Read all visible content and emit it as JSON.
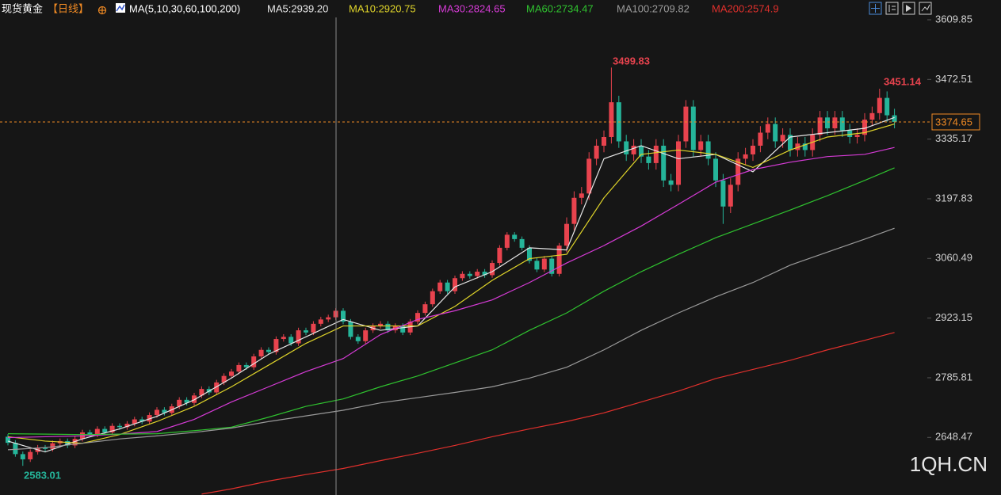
{
  "chart_data": {
    "type": "candlestick",
    "title": "现货黄金",
    "period": "【日线】",
    "ma_title": "MA(5,10,30,60,100,200)",
    "watermark": "1QH.CN",
    "up_color": "#e8434e",
    "down_color": "#25b59a",
    "ylim": [
      2515.9,
      3655.4
    ],
    "yticks": [
      2648.47,
      2785.81,
      2923.15,
      3060.49,
      3197.83,
      3335.17,
      3472.51,
      3609.85
    ],
    "grid": false,
    "open": [
      2650,
      2636,
      2610,
      2598,
      2615,
      2625,
      2622,
      2635,
      2640,
      2630,
      2645,
      2660,
      2655,
      2668,
      2660,
      2675,
      2672,
      2680,
      2690,
      2685,
      2700,
      2712,
      2705,
      2720,
      2735,
      2728,
      2745,
      2760,
      2752,
      2775,
      2790,
      2800,
      2815,
      2810,
      2835,
      2850,
      2845,
      2875,
      2880,
      2865,
      2895,
      2890,
      2910,
      2920,
      2925,
      2940,
      2915,
      2880,
      2870,
      2895,
      2905,
      2910,
      2895,
      2905,
      2890,
      2915,
      2935,
      2955,
      2985,
      3005,
      2985,
      3015,
      3025,
      3020,
      3030,
      3022,
      3050,
      3085,
      3115,
      3105,
      3085,
      3055,
      3035,
      3060,
      3025,
      3090,
      3140,
      3200,
      3210,
      3290,
      3320,
      3340,
      3420,
      3330,
      3300,
      3320,
      3295,
      3280,
      3320,
      3240,
      3230,
      3330,
      3410,
      3310,
      3330,
      3290,
      3240,
      3180,
      3230,
      3290,
      3300,
      3320,
      3350,
      3370,
      3330,
      3345,
      3310,
      3325,
      3310,
      3345,
      3385,
      3360,
      3385,
      3355,
      3340,
      3345,
      3380,
      3395,
      3430,
      3390
    ],
    "high": [
      2656,
      2642,
      2616,
      2621,
      2631,
      2631,
      2641,
      2646,
      2646,
      2651,
      2666,
      2666,
      2674,
      2674,
      2681,
      2681,
      2686,
      2696,
      2696,
      2706,
      2718,
      2718,
      2726,
      2741,
      2741,
      2751,
      2766,
      2766,
      2781,
      2796,
      2806,
      2821,
      2821,
      2841,
      2856,
      2856,
      2881,
      2886,
      2886,
      2901,
      2901,
      2916,
      2926,
      2931,
      2946,
      2946,
      2921,
      2886,
      2901,
      2911,
      2916,
      2916,
      2911,
      2911,
      2921,
      2941,
      2961,
      2991,
      3011,
      3011,
      3021,
      3031,
      3031,
      3036,
      3036,
      3056,
      3091,
      3121,
      3121,
      3111,
      3091,
      3061,
      3066,
      3066,
      3096,
      3155,
      3215,
      3225,
      3305,
      3335,
      3355,
      3499.83,
      3435,
      3345,
      3335,
      3335,
      3310,
      3335,
      3335,
      3255,
      3345,
      3425,
      3425,
      3345,
      3345,
      3305,
      3255,
      3245,
      3305,
      3315,
      3335,
      3365,
      3385,
      3385,
      3360,
      3360,
      3340,
      3340,
      3360,
      3400,
      3400,
      3400,
      3400,
      3370,
      3360,
      3395,
      3410,
      3451.14,
      3445,
      3405
    ],
    "low": [
      2630,
      2604,
      2583.01,
      2592,
      2609,
      2616,
      2616,
      2629,
      2624,
      2624,
      2639,
      2649,
      2649,
      2654,
      2654,
      2666,
      2666,
      2674,
      2679,
      2679,
      2694,
      2699,
      2699,
      2714,
      2722,
      2722,
      2739,
      2746,
      2746,
      2769,
      2784,
      2794,
      2804,
      2804,
      2829,
      2839,
      2839,
      2869,
      2859,
      2859,
      2884,
      2884,
      2904,
      2914,
      2919,
      2909,
      2874,
      2864,
      2864,
      2889,
      2899,
      2889,
      2889,
      2884,
      2884,
      2909,
      2929,
      2949,
      2979,
      2979,
      2979,
      3009,
      3014,
      3014,
      3016,
      3016,
      3044,
      3079,
      3099,
      3079,
      3049,
      3029,
      3029,
      3019,
      3019,
      3075,
      3125,
      3185,
      3195,
      3275,
      3305,
      3325,
      3315,
      3285,
      3285,
      3280,
      3265,
      3265,
      3225,
      3215,
      3215,
      3315,
      3295,
      3295,
      3275,
      3225,
      3140,
      3165,
      3215,
      3275,
      3285,
      3305,
      3335,
      3315,
      3315,
      3295,
      3295,
      3295,
      3295,
      3330,
      3345,
      3345,
      3340,
      3325,
      3325,
      3330,
      3365,
      3380,
      3375,
      3360
    ],
    "close": [
      2636,
      2610,
      2598,
      2615,
      2625,
      2622,
      2635,
      2640,
      2630,
      2645,
      2660,
      2655,
      2668,
      2660,
      2675,
      2672,
      2680,
      2690,
      2685,
      2700,
      2712,
      2705,
      2720,
      2735,
      2728,
      2745,
      2760,
      2752,
      2775,
      2790,
      2800,
      2815,
      2810,
      2835,
      2850,
      2845,
      2875,
      2880,
      2865,
      2895,
      2890,
      2910,
      2920,
      2925,
      2940,
      2915,
      2880,
      2870,
      2895,
      2905,
      2910,
      2895,
      2905,
      2890,
      2915,
      2935,
      2955,
      2985,
      3005,
      2985,
      3015,
      3025,
      3020,
      3030,
      3022,
      3050,
      3085,
      3115,
      3105,
      3085,
      3055,
      3035,
      3060,
      3025,
      3090,
      3140,
      3200,
      3210,
      3290,
      3320,
      3340,
      3420,
      3330,
      3300,
      3320,
      3295,
      3280,
      3320,
      3240,
      3230,
      3330,
      3410,
      3310,
      3330,
      3290,
      3240,
      3180,
      3230,
      3290,
      3300,
      3320,
      3350,
      3370,
      3330,
      3345,
      3310,
      3325,
      3310,
      3345,
      3385,
      3360,
      3385,
      3355,
      3340,
      3345,
      3380,
      3395,
      3430,
      3390,
      3374.65
    ],
    "series": [
      {
        "label": "MA5:2939.20",
        "color": "#e8e8e8",
        "x": [
          0,
          5,
          10,
          15,
          20,
          25,
          30,
          35,
          40,
          45,
          50,
          55,
          60,
          65,
          70,
          75,
          80,
          85,
          90,
          95,
          100,
          105,
          110,
          115,
          119
        ],
        "values": [
          2640,
          2615,
          2645,
          2668,
          2697,
          2735,
          2785,
          2840,
          2880,
          2920,
          2895,
          2905,
          2995,
          3030,
          3085,
          3080,
          3290,
          3320,
          3290,
          3300,
          3260,
          3340,
          3350,
          3360,
          3385
        ]
      },
      {
        "label": "MA10:2920.75",
        "color": "#e0d52a",
        "x": [
          0,
          5,
          10,
          15,
          20,
          25,
          30,
          35,
          40,
          45,
          50,
          55,
          60,
          65,
          70,
          75,
          80,
          85,
          90,
          95,
          100,
          105,
          110,
          115,
          119
        ],
        "values": [
          2650,
          2640,
          2635,
          2655,
          2685,
          2720,
          2765,
          2815,
          2865,
          2905,
          2905,
          2905,
          2950,
          3010,
          3060,
          3070,
          3200,
          3300,
          3310,
          3300,
          3270,
          3310,
          3340,
          3350,
          3370
        ]
      },
      {
        "label": "MA30:2824.65",
        "color": "#d63bd6",
        "x": [
          0,
          5,
          10,
          15,
          20,
          25,
          30,
          35,
          40,
          45,
          50,
          55,
          60,
          65,
          70,
          75,
          80,
          85,
          90,
          95,
          100,
          105,
          110,
          115,
          119
        ],
        "values": [
          2648,
          2650,
          2652,
          2656,
          2662,
          2690,
          2730,
          2765,
          2800,
          2830,
          2885,
          2920,
          2940,
          2965,
          3005,
          3050,
          3090,
          3135,
          3185,
          3236,
          3265,
          3282,
          3295,
          3300,
          3316
        ]
      },
      {
        "label": "MA60:2734.47",
        "color": "#2fc22f",
        "x": [
          0,
          5,
          10,
          15,
          20,
          25,
          30,
          35,
          40,
          45,
          50,
          55,
          60,
          65,
          70,
          75,
          80,
          85,
          90,
          95,
          100,
          105,
          110,
          115,
          119
        ],
        "values": [
          2657,
          2656,
          2655,
          2656,
          2657,
          2664,
          2672,
          2695,
          2720,
          2737,
          2765,
          2790,
          2820,
          2850,
          2895,
          2935,
          2985,
          3030,
          3070,
          3108,
          3140,
          3172,
          3205,
          3240,
          3269
        ]
      },
      {
        "label": "MA100:2709.82",
        "color": "#9a9a9a",
        "x": [
          0,
          5,
          10,
          15,
          20,
          25,
          30,
          35,
          40,
          45,
          50,
          55,
          60,
          65,
          70,
          75,
          80,
          85,
          90,
          95,
          100,
          105,
          110,
          115,
          119
        ],
        "values": [
          2620,
          2625,
          2635,
          2645,
          2652,
          2660,
          2670,
          2685,
          2698,
          2711,
          2728,
          2740,
          2752,
          2765,
          2785,
          2810,
          2850,
          2895,
          2935,
          2972,
          3005,
          3045,
          3075,
          3105,
          3130
        ]
      },
      {
        "label": "MA200:2574.9",
        "color": "#e0302c",
        "x": [
          26,
          30,
          35,
          40,
          45,
          50,
          55,
          60,
          65,
          70,
          75,
          80,
          85,
          90,
          95,
          100,
          105,
          110,
          115,
          119
        ],
        "values": [
          2518,
          2530,
          2548,
          2563,
          2577,
          2595,
          2612,
          2630,
          2650,
          2668,
          2685,
          2705,
          2730,
          2755,
          2784,
          2805,
          2826,
          2850,
          2872,
          2890
        ]
      }
    ]
  }
}
